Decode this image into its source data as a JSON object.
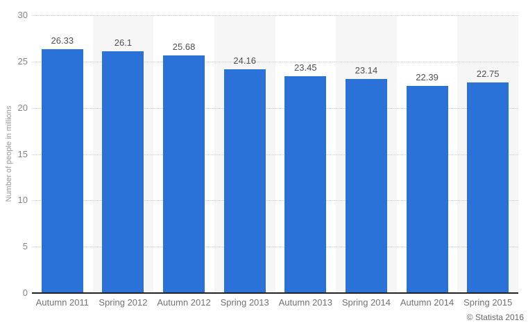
{
  "chart_data": {
    "type": "bar",
    "categories": [
      "Autumn 2011",
      "Spring 2012",
      "Autumn 2012",
      "Spring 2013",
      "Autumn 2013",
      "Spring 2014",
      "Autumn 2014",
      "Spring 2015"
    ],
    "values": [
      26.33,
      26.1,
      25.68,
      24.16,
      23.45,
      23.14,
      22.39,
      22.75
    ],
    "value_labels": [
      "26.33",
      "26.1",
      "25.68",
      "24.16",
      "23.45",
      "23.14",
      "22.39",
      "22.75"
    ],
    "title": "",
    "xlabel": "",
    "ylabel": "Number of people in millions",
    "ylim": [
      0,
      30
    ],
    "yticks": [
      30,
      25,
      20,
      15,
      10,
      5,
      0
    ],
    "grid": "horizontal-dotted",
    "legend": "none",
    "stripes": "alternating vertical bands behind every second bar",
    "colors": {
      "bar": "#2B72D8",
      "stripe": "#F6F6F6",
      "gridline": "#CCCCCC",
      "axis_line": "#222222",
      "tick_label": "#858585",
      "category_label": "#737373",
      "value_label": "#4F4F4F",
      "y_axis_title": "#999999",
      "credit": "#666666",
      "background": "#FFFFFF"
    }
  },
  "footer": {
    "credit": "© Statista 2016"
  }
}
